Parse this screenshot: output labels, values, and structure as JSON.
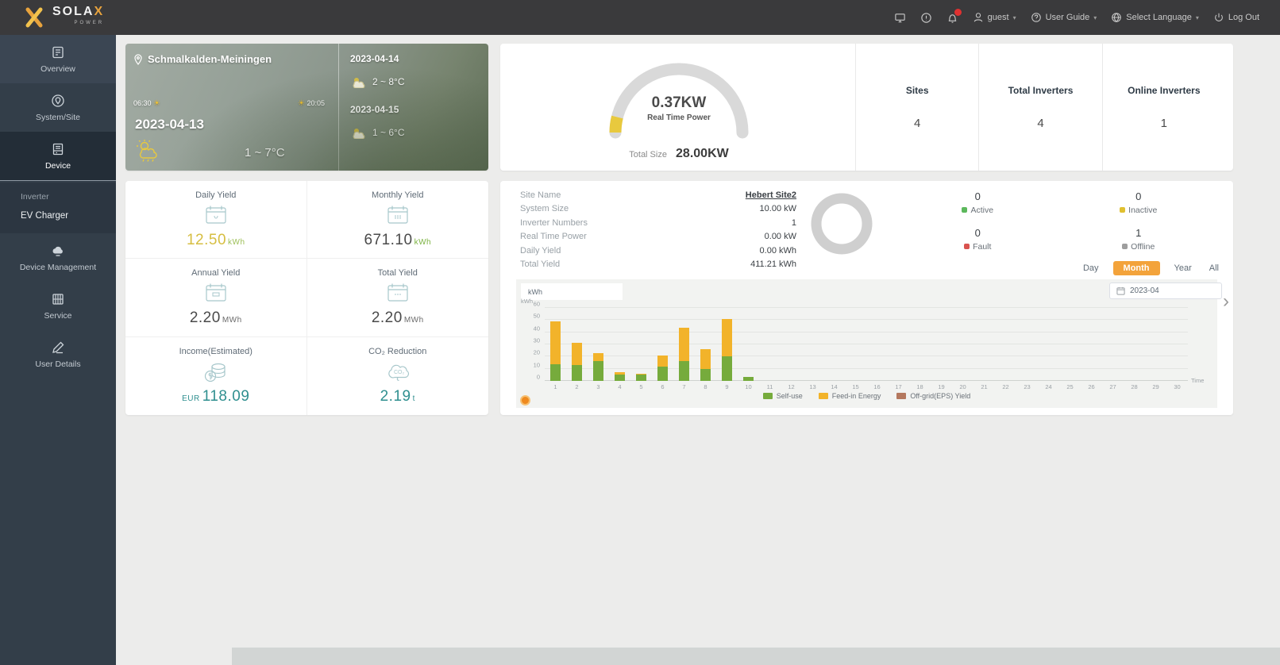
{
  "header": {
    "brand_main": "SOLA",
    "brand_x": "X",
    "brand_sub": "POWER",
    "user": "guest",
    "user_guide": "User Guide",
    "select_language": "Select Language",
    "logout": "Log Out",
    "badge_color": "#e03131"
  },
  "sidebar": {
    "items": [
      {
        "label": "Overview",
        "icon": "overview-icon"
      },
      {
        "label": "System/Site",
        "icon": "site-icon"
      },
      {
        "label": "Device",
        "icon": "device-icon",
        "active": true,
        "submenu": [
          "Inverter",
          "EV Charger"
        ]
      },
      {
        "label": "Device Management",
        "icon": "device-management-icon"
      },
      {
        "label": "Service",
        "icon": "service-icon"
      },
      {
        "label": "User Details",
        "icon": "user-details-icon"
      }
    ]
  },
  "weather": {
    "location": "Schmalkalden-Meiningen",
    "sunrise": "06:30",
    "sunset": "20:05",
    "today_date": "2023-04-13",
    "today_temp": "1 ~ 7°C",
    "forecast": [
      {
        "date": "2023-04-14",
        "temp": "2 ~ 8°C",
        "icon": "cloud-sun-icon"
      },
      {
        "date": "2023-04-15",
        "temp": "1 ~ 6°C",
        "icon": "cloud-sun-icon"
      }
    ]
  },
  "power": {
    "value": "0.37KW",
    "label": "Real Time Power",
    "total_label": "Total Size",
    "total_value": "28.00KW",
    "gauge_color": "#d9d9d9",
    "gauge_fill_color": "#e8c93e",
    "stats": [
      {
        "label": "Sites",
        "value": "4"
      },
      {
        "label": "Total Inverters",
        "value": "4"
      },
      {
        "label": "Online Inverters",
        "value": "1"
      }
    ]
  },
  "yields": [
    {
      "label": "Daily Yield",
      "value": "12.50",
      "unit": "kWh",
      "icon": "calendar-day-icon",
      "value_color": "#d6be41",
      "unit_color": "#9cbf56"
    },
    {
      "label": "Monthly Yield",
      "value": "671.10",
      "unit": "kWh",
      "icon": "calendar-month-icon",
      "value_color": "#4a4a4a",
      "unit_color": "#7cb342"
    },
    {
      "label": "Annual Yield",
      "value": "2.20",
      "unit": "MWh",
      "icon": "calendar-year-icon",
      "value_color": "#4a4a4a",
      "unit_color": "#6b6b6b"
    },
    {
      "label": "Total Yield",
      "value": "2.20",
      "unit": "MWh",
      "icon": "calendar-total-icon",
      "value_color": "#4a4a4a",
      "unit_color": "#6b6b6b"
    },
    {
      "label": "Income(Estimated)",
      "prefix": "EUR",
      "value": "118.09",
      "unit": "",
      "icon": "coin-icon",
      "value_color": "#2f8f8f",
      "unit_color": "#2f8f8f"
    },
    {
      "label": "CO₂ Reduction",
      "value": "2.19",
      "unit": "t",
      "icon": "co2-icon",
      "value_color": "#2f8f8f",
      "unit_color": "#2f8f8f"
    }
  ],
  "site": {
    "info": [
      {
        "label": "Site Name",
        "value": "Hebert Site2",
        "link": true
      },
      {
        "label": "System Size",
        "value": "10.00 kW"
      },
      {
        "label": "Inverter Numbers",
        "value": "1"
      },
      {
        "label": "Real Time Power",
        "value": "0.00 kW"
      },
      {
        "label": "Daily Yield",
        "value": "0.00 kWh"
      },
      {
        "label": "Total Yield",
        "value": "411.21 kWh"
      }
    ],
    "donut_color": "#cfcfcf",
    "status": [
      {
        "label": "Active",
        "value": "0",
        "color": "#5cb85c"
      },
      {
        "label": "Inactive",
        "value": "0",
        "color": "#e0c030"
      },
      {
        "label": "Fault",
        "value": "0",
        "color": "#d9534f"
      },
      {
        "label": "Offline",
        "value": "1",
        "color": "#9e9e9e"
      }
    ],
    "period": {
      "options": [
        "Day",
        "Month",
        "Year",
        "All"
      ],
      "active": "Month",
      "active_color": "#f3a33b",
      "date": "2023-04"
    }
  },
  "chart_data": {
    "type": "bar",
    "stacked": true,
    "unit_tab": "kWh",
    "ylabel": "kWh",
    "xlabel": "Time",
    "ylim": [
      0,
      60
    ],
    "yticks": [
      0,
      10,
      20,
      30,
      40,
      50,
      60
    ],
    "grid": true,
    "legend_position": "bottom",
    "x": [
      1,
      2,
      3,
      4,
      5,
      6,
      7,
      8,
      9,
      10,
      11,
      12,
      13,
      14,
      15,
      16,
      17,
      18,
      19,
      20,
      21,
      22,
      23,
      24,
      25,
      26,
      27,
      28,
      29,
      30
    ],
    "series": [
      {
        "name": "Self-use",
        "color": "#76ab3c",
        "values": [
          14,
          13,
          16,
          5,
          5,
          12,
          16,
          10,
          20,
          3,
          0,
          0,
          0,
          0,
          0,
          0,
          0,
          0,
          0,
          0,
          0,
          0,
          0,
          0,
          0,
          0,
          0,
          0,
          0,
          0
        ]
      },
      {
        "name": "Feed-in Energy",
        "color": "#f2b32a",
        "values": [
          35,
          18,
          7,
          2,
          1,
          9,
          28,
          16,
          31,
          0,
          0,
          0,
          0,
          0,
          0,
          0,
          0,
          0,
          0,
          0,
          0,
          0,
          0,
          0,
          0,
          0,
          0,
          0,
          0,
          0
        ]
      },
      {
        "name": "Off-grid(EPS) Yield",
        "color": "#b4785e",
        "values": [
          0,
          0,
          0,
          0,
          0,
          0,
          0,
          0,
          0,
          0,
          0,
          0,
          0,
          0,
          0,
          0,
          0,
          0,
          0,
          0,
          0,
          0,
          0,
          0,
          0,
          0,
          0,
          0,
          0,
          0
        ]
      }
    ]
  }
}
